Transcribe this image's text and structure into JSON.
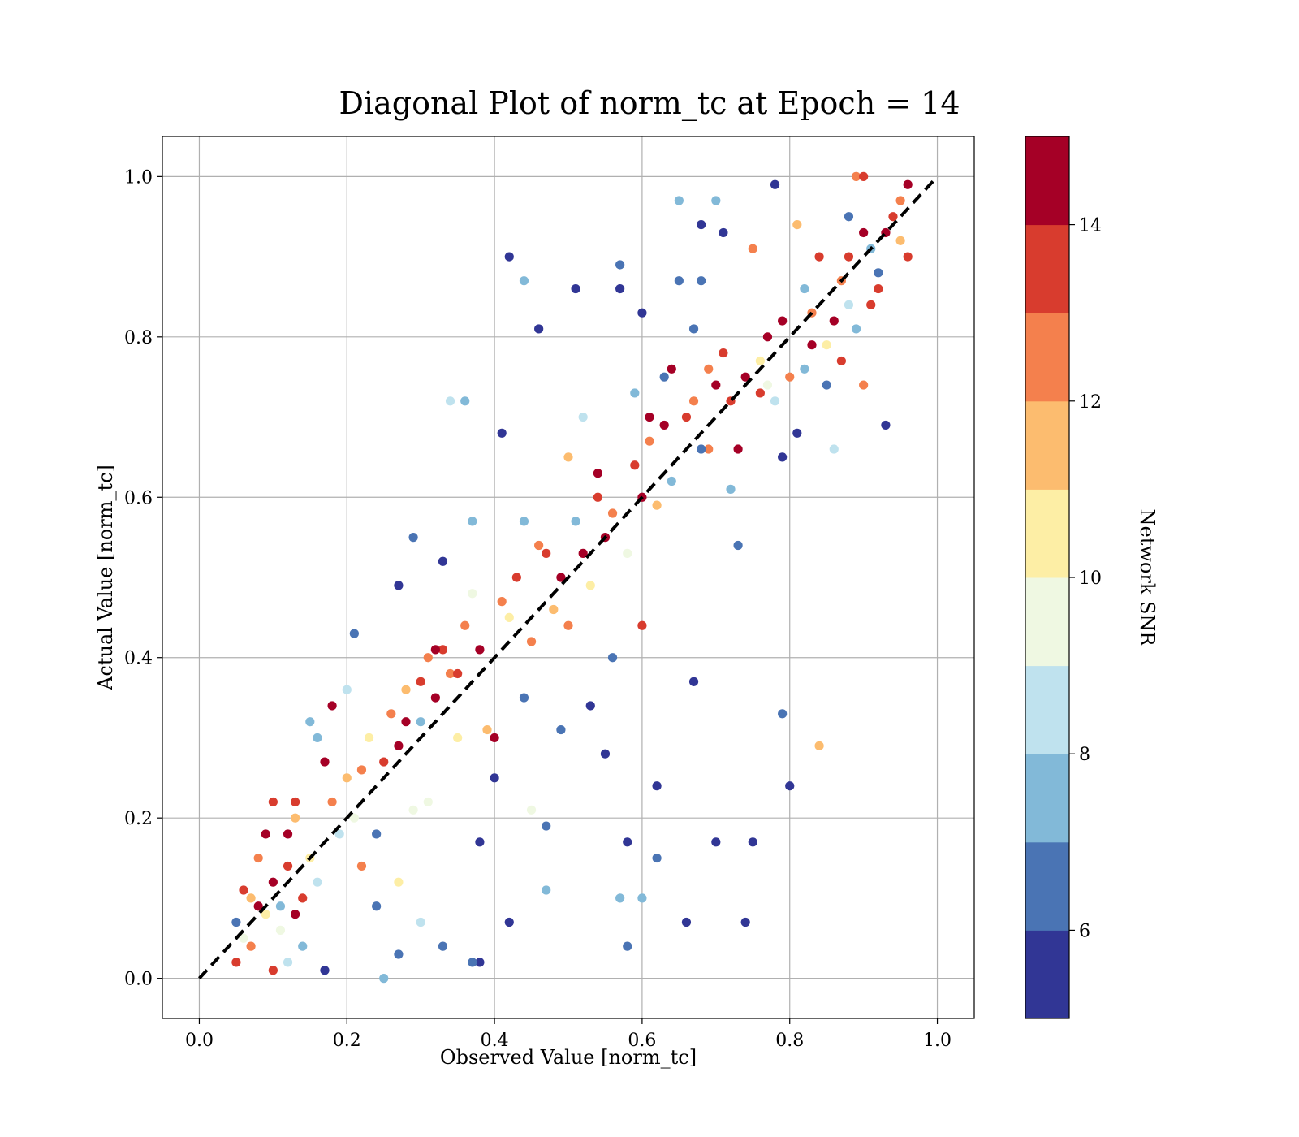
{
  "chart_data": {
    "type": "scatter",
    "title": "Diagonal Plot of norm_tc at Epoch = 14",
    "xlabel": "Observed Value [norm_tc]",
    "ylabel": "Actual Value [norm_tc]",
    "xlim": [
      -0.05,
      1.05
    ],
    "ylim": [
      -0.05,
      1.05
    ],
    "xticks": [
      "0.0",
      "0.2",
      "0.4",
      "0.6",
      "0.8",
      "1.0"
    ],
    "yticks": [
      "0.0",
      "0.2",
      "0.4",
      "0.6",
      "0.8",
      "1.0"
    ],
    "grid": true,
    "reference_line": {
      "from": [
        0,
        0
      ],
      "to": [
        1,
        1
      ],
      "style": "dashed",
      "color": "#000000"
    },
    "colorbar": {
      "label": "Network SNR",
      "range": [
        5,
        15
      ],
      "ticks": [
        "6",
        "8",
        "10",
        "12",
        "14"
      ],
      "colors": [
        "#313695",
        "#4a74b4",
        "#82b9d8",
        "#bfe2ee",
        "#eff8e2",
        "#fdeea5",
        "#fcbc6f",
        "#f4804d",
        "#d83c2e",
        "#a50026"
      ]
    },
    "points": [
      [
        0.05,
        0.02,
        13
      ],
      [
        0.06,
        0.05,
        9
      ],
      [
        0.07,
        0.04,
        12
      ],
      [
        0.05,
        0.07,
        6
      ],
      [
        0.08,
        0.09,
        14
      ],
      [
        0.06,
        0.11,
        13
      ],
      [
        0.09,
        0.08,
        10
      ],
      [
        0.1,
        0.12,
        14
      ],
      [
        0.07,
        0.1,
        11
      ],
      [
        0.11,
        0.09,
        7
      ],
      [
        0.12,
        0.14,
        13
      ],
      [
        0.09,
        0.18,
        14
      ],
      [
        0.08,
        0.15,
        12
      ],
      [
        0.1,
        0.22,
        13
      ],
      [
        0.12,
        0.18,
        14
      ],
      [
        0.13,
        0.08,
        14
      ],
      [
        0.14,
        0.1,
        13
      ],
      [
        0.11,
        0.06,
        9
      ],
      [
        0.15,
        0.15,
        10
      ],
      [
        0.13,
        0.2,
        11
      ],
      [
        0.16,
        0.12,
        8
      ],
      [
        0.14,
        0.04,
        7
      ],
      [
        0.17,
        0.01,
        5
      ],
      [
        0.12,
        0.02,
        8
      ],
      [
        0.1,
        0.01,
        13
      ],
      [
        0.18,
        0.22,
        12
      ],
      [
        0.17,
        0.27,
        14
      ],
      [
        0.19,
        0.18,
        8
      ],
      [
        0.16,
        0.3,
        7
      ],
      [
        0.2,
        0.25,
        11
      ],
      [
        0.18,
        0.34,
        14
      ],
      [
        0.21,
        0.2,
        9
      ],
      [
        0.22,
        0.26,
        12
      ],
      [
        0.23,
        0.3,
        10
      ],
      [
        0.24,
        0.18,
        6
      ],
      [
        0.21,
        0.43,
        6
      ],
      [
        0.25,
        0.27,
        13
      ],
      [
        0.26,
        0.33,
        12
      ],
      [
        0.27,
        0.29,
        14
      ],
      [
        0.28,
        0.36,
        11
      ],
      [
        0.27,
        0.49,
        5
      ],
      [
        0.25,
        0.0,
        7
      ],
      [
        0.27,
        0.03,
        6
      ],
      [
        0.29,
        0.55,
        6
      ],
      [
        0.3,
        0.37,
        13
      ],
      [
        0.29,
        0.21,
        9
      ],
      [
        0.31,
        0.4,
        12
      ],
      [
        0.3,
        0.32,
        7
      ],
      [
        0.32,
        0.35,
        14
      ],
      [
        0.33,
        0.41,
        13
      ],
      [
        0.33,
        0.52,
        5
      ],
      [
        0.34,
        0.38,
        12
      ],
      [
        0.35,
        0.3,
        10
      ],
      [
        0.34,
        0.72,
        8
      ],
      [
        0.36,
        0.72,
        7
      ],
      [
        0.37,
        0.57,
        7
      ],
      [
        0.36,
        0.44,
        12
      ],
      [
        0.38,
        0.41,
        14
      ],
      [
        0.39,
        0.31,
        11
      ],
      [
        0.37,
        0.48,
        9
      ],
      [
        0.38,
        0.17,
        5
      ],
      [
        0.38,
        0.02,
        5
      ],
      [
        0.37,
        0.02,
        6
      ],
      [
        0.4,
        0.25,
        5
      ],
      [
        0.4,
        0.3,
        14
      ],
      [
        0.41,
        0.47,
        12
      ],
      [
        0.41,
        0.68,
        5
      ],
      [
        0.42,
        0.45,
        10
      ],
      [
        0.43,
        0.5,
        13
      ],
      [
        0.42,
        0.07,
        5
      ],
      [
        0.42,
        0.9,
        5
      ],
      [
        0.44,
        0.87,
        7
      ],
      [
        0.45,
        0.42,
        12
      ],
      [
        0.44,
        0.35,
        6
      ],
      [
        0.45,
        0.21,
        9
      ],
      [
        0.46,
        0.81,
        5
      ],
      [
        0.47,
        0.53,
        13
      ],
      [
        0.48,
        0.46,
        11
      ],
      [
        0.47,
        0.19,
        6
      ],
      [
        0.47,
        0.11,
        7
      ],
      [
        0.49,
        0.5,
        14
      ],
      [
        0.5,
        0.44,
        12
      ],
      [
        0.49,
        0.31,
        6
      ],
      [
        0.51,
        0.57,
        7
      ],
      [
        0.52,
        0.53,
        14
      ],
      [
        0.51,
        0.86,
        5
      ],
      [
        0.53,
        0.49,
        10
      ],
      [
        0.54,
        0.6,
        13
      ],
      [
        0.53,
        0.34,
        5
      ],
      [
        0.55,
        0.28,
        5
      ],
      [
        0.55,
        0.55,
        14
      ],
      [
        0.56,
        0.58,
        12
      ],
      [
        0.56,
        0.4,
        6
      ],
      [
        0.57,
        0.89,
        6
      ],
      [
        0.57,
        0.86,
        5
      ],
      [
        0.57,
        0.1,
        7
      ],
      [
        0.58,
        0.17,
        5
      ],
      [
        0.58,
        0.04,
        6
      ],
      [
        0.58,
        0.53,
        9
      ],
      [
        0.59,
        0.64,
        13
      ],
      [
        0.6,
        0.6,
        14
      ],
      [
        0.6,
        0.83,
        5
      ],
      [
        0.6,
        0.1,
        7
      ],
      [
        0.6,
        0.44,
        13
      ],
      [
        0.61,
        0.67,
        12
      ],
      [
        0.62,
        0.59,
        11
      ],
      [
        0.62,
        0.15,
        6
      ],
      [
        0.62,
        0.24,
        5
      ],
      [
        0.63,
        0.69,
        14
      ],
      [
        0.64,
        0.62,
        7
      ],
      [
        0.65,
        0.97,
        7
      ],
      [
        0.65,
        0.87,
        6
      ],
      [
        0.66,
        0.7,
        13
      ],
      [
        0.66,
        0.07,
        5
      ],
      [
        0.67,
        0.37,
        5
      ],
      [
        0.67,
        0.81,
        6
      ],
      [
        0.68,
        0.94,
        5
      ],
      [
        0.68,
        0.87,
        6
      ],
      [
        0.69,
        0.66,
        12
      ],
      [
        0.7,
        0.74,
        14
      ],
      [
        0.7,
        0.97,
        7
      ],
      [
        0.7,
        0.17,
        5
      ],
      [
        0.71,
        0.93,
        5
      ],
      [
        0.72,
        0.72,
        13
      ],
      [
        0.73,
        0.54,
        6
      ],
      [
        0.74,
        0.75,
        14
      ],
      [
        0.74,
        0.07,
        5
      ],
      [
        0.75,
        0.17,
        5
      ],
      [
        0.75,
        0.91,
        12
      ],
      [
        0.76,
        0.77,
        10
      ],
      [
        0.77,
        0.8,
        14
      ],
      [
        0.78,
        0.99,
        5
      ],
      [
        0.78,
        0.72,
        8
      ],
      [
        0.79,
        0.33,
        6
      ],
      [
        0.79,
        0.65,
        5
      ],
      [
        0.8,
        0.75,
        12
      ],
      [
        0.8,
        0.24,
        5
      ],
      [
        0.81,
        0.94,
        11
      ],
      [
        0.81,
        0.68,
        5
      ],
      [
        0.82,
        0.86,
        7
      ],
      [
        0.83,
        0.79,
        14
      ],
      [
        0.84,
        0.9,
        13
      ],
      [
        0.84,
        0.29,
        11
      ],
      [
        0.85,
        0.74,
        6
      ],
      [
        0.86,
        0.82,
        14
      ],
      [
        0.86,
        0.66,
        8
      ],
      [
        0.87,
        0.87,
        12
      ],
      [
        0.88,
        0.9,
        13
      ],
      [
        0.88,
        0.95,
        6
      ],
      [
        0.89,
        0.81,
        7
      ],
      [
        0.9,
        0.93,
        14
      ],
      [
        0.9,
        0.74,
        12
      ],
      [
        0.91,
        0.84,
        13
      ],
      [
        0.92,
        0.88,
        6
      ],
      [
        0.93,
        0.69,
        5
      ],
      [
        0.93,
        0.93,
        14
      ],
      [
        0.94,
        0.95,
        13
      ],
      [
        0.95,
        0.97,
        12
      ],
      [
        0.96,
        0.99,
        14
      ],
      [
        0.95,
        0.92,
        11
      ],
      [
        0.89,
        1.0,
        12
      ],
      [
        0.9,
        1.0,
        13
      ],
      [
        0.96,
        0.9,
        13
      ],
      [
        0.13,
        0.22,
        13
      ],
      [
        0.22,
        0.14,
        12
      ],
      [
        0.24,
        0.09,
        6
      ],
      [
        0.27,
        0.12,
        10
      ],
      [
        0.31,
        0.22,
        9
      ],
      [
        0.33,
        0.04,
        6
      ],
      [
        0.3,
        0.07,
        8
      ],
      [
        0.2,
        0.36,
        8
      ],
      [
        0.15,
        0.32,
        7
      ],
      [
        0.28,
        0.32,
        14
      ],
      [
        0.32,
        0.41,
        14
      ],
      [
        0.35,
        0.38,
        13
      ],
      [
        0.44,
        0.57,
        7
      ],
      [
        0.46,
        0.54,
        12
      ],
      [
        0.5,
        0.65,
        11
      ],
      [
        0.52,
        0.7,
        8
      ],
      [
        0.54,
        0.63,
        14
      ],
      [
        0.59,
        0.73,
        7
      ],
      [
        0.61,
        0.7,
        14
      ],
      [
        0.63,
        0.75,
        6
      ],
      [
        0.64,
        0.76,
        14
      ],
      [
        0.67,
        0.72,
        12
      ],
      [
        0.68,
        0.66,
        6
      ],
      [
        0.69,
        0.76,
        12
      ],
      [
        0.71,
        0.78,
        13
      ],
      [
        0.72,
        0.61,
        7
      ],
      [
        0.73,
        0.66,
        14
      ],
      [
        0.76,
        0.73,
        13
      ],
      [
        0.77,
        0.74,
        9
      ],
      [
        0.79,
        0.82,
        14
      ],
      [
        0.82,
        0.76,
        7
      ],
      [
        0.83,
        0.83,
        12
      ],
      [
        0.85,
        0.79,
        10
      ],
      [
        0.87,
        0.77,
        13
      ],
      [
        0.88,
        0.84,
        8
      ],
      [
        0.91,
        0.91,
        7
      ],
      [
        0.92,
        0.86,
        13
      ]
    ]
  }
}
